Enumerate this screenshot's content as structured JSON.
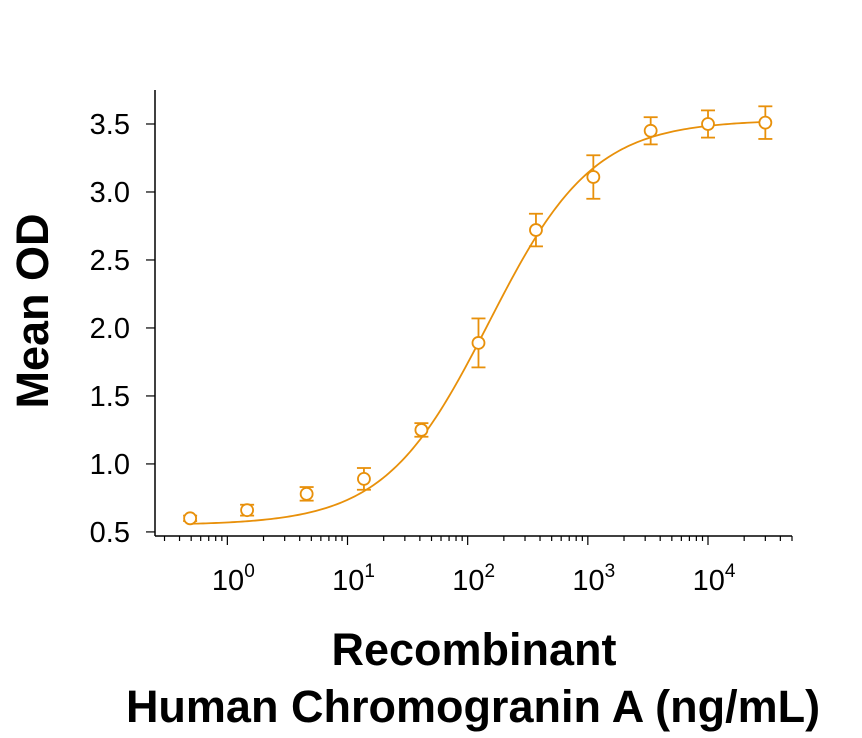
{
  "chart_data": {
    "type": "scatter",
    "xscale": "log",
    "xlim": [
      0.25,
      50000
    ],
    "ylim": [
      0.47,
      3.75
    ],
    "xlabel_lines": [
      "Recombinant",
      "Human Chromogranin A (ng/mL)"
    ],
    "ylabel": "Mean OD",
    "x_ticks": [
      {
        "value": 1,
        "base": "10",
        "exp": "0"
      },
      {
        "value": 10,
        "base": "10",
        "exp": "1"
      },
      {
        "value": 100,
        "base": "10",
        "exp": "2"
      },
      {
        "value": 1000,
        "base": "10",
        "exp": "3"
      },
      {
        "value": 10000,
        "base": "10",
        "exp": "4"
      }
    ],
    "y_ticks": [
      {
        "value": 0.5,
        "label": "0.5"
      },
      {
        "value": 1.0,
        "label": "1.0"
      },
      {
        "value": 1.5,
        "label": "1.5"
      },
      {
        "value": 2.0,
        "label": "2.0"
      },
      {
        "value": 2.5,
        "label": "2.5"
      },
      {
        "value": 3.0,
        "label": "3.0"
      },
      {
        "value": 3.5,
        "label": "3.5"
      }
    ],
    "series": [
      {
        "color": "#E8900A",
        "marker": "open-circle",
        "fit": "4PL",
        "x": [
          0.49,
          1.46,
          4.57,
          13.7,
          41.2,
          123,
          370,
          1111,
          3333,
          10000,
          30000
        ],
        "y": [
          0.6,
          0.66,
          0.78,
          0.89,
          1.25,
          1.89,
          2.72,
          3.11,
          3.45,
          3.5,
          3.51
        ],
        "error": [
          0.02,
          0.04,
          0.05,
          0.08,
          0.05,
          0.18,
          0.12,
          0.16,
          0.1,
          0.1,
          0.12
        ]
      }
    ]
  }
}
